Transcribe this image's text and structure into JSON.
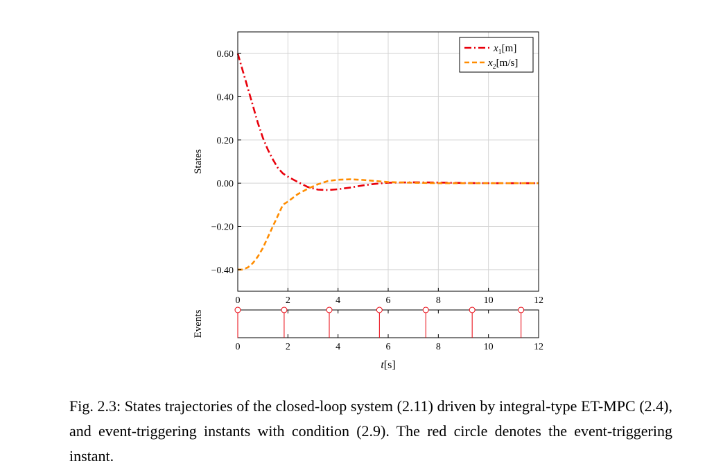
{
  "caption": "Fig. 2.3: States trajectories of the closed-loop system (2.11) driven by integral-type ET-MPC (2.4), and event-triggering instants with condition (2.9). The red circle denotes the event-triggering instant.",
  "chart_data": [
    {
      "type": "line",
      "ylabel": "States",
      "xlim": [
        0,
        12
      ],
      "ylim": [
        -0.5,
        0.7
      ],
      "xticks": [
        0,
        2,
        4,
        6,
        8,
        10,
        12
      ],
      "xtick_labels": [
        "0",
        "2",
        "4",
        "6",
        "8",
        "10",
        "12"
      ],
      "yticks": [
        -0.4,
        -0.2,
        0.0,
        0.2,
        0.4,
        0.6
      ],
      "ytick_labels": [
        "−0.40",
        "−0.20",
        "0.00",
        "0.20",
        "0.40",
        "0.60"
      ],
      "grid": true,
      "legend_position": "top-right",
      "series": [
        {
          "name": "x1[m]",
          "legend_base": "x",
          "legend_sub": "1",
          "legend_unit": "[m]",
          "color": "#e8000b",
          "style": "dash-dot",
          "x": [
            0,
            0.2,
            0.4,
            0.6,
            0.8,
            1.0,
            1.2,
            1.4,
            1.6,
            1.8,
            2.0,
            2.4,
            2.8,
            3.2,
            3.6,
            4.0,
            4.5,
            5.0,
            5.5,
            6.0,
            7.0,
            8.0,
            9.0,
            10.0,
            11.0,
            12.0
          ],
          "y": [
            0.6,
            0.52,
            0.44,
            0.36,
            0.28,
            0.21,
            0.155,
            0.11,
            0.07,
            0.045,
            0.03,
            0.005,
            -0.018,
            -0.03,
            -0.032,
            -0.028,
            -0.02,
            -0.01,
            -0.003,
            0.002,
            0.004,
            0.003,
            0.001,
            0.0,
            0.0,
            0.0
          ]
        },
        {
          "name": "x2[m/s]",
          "legend_base": "x",
          "legend_sub": "2",
          "legend_unit": "[m/s]",
          "color": "#ff8c00",
          "style": "dashed",
          "x": [
            0,
            0.2,
            0.4,
            0.6,
            0.8,
            1.0,
            1.2,
            1.4,
            1.6,
            1.8,
            2.0,
            2.4,
            2.8,
            3.2,
            3.6,
            4.0,
            4.5,
            5.0,
            5.5,
            6.0,
            7.0,
            8.0,
            9.0,
            10.0,
            11.0,
            12.0
          ],
          "y": [
            -0.4,
            -0.4,
            -0.39,
            -0.37,
            -0.34,
            -0.3,
            -0.25,
            -0.2,
            -0.15,
            -0.1,
            -0.085,
            -0.05,
            -0.025,
            -0.005,
            0.01,
            0.016,
            0.018,
            0.015,
            0.01,
            0.005,
            0.002,
            0.0,
            0.0,
            0.0,
            0.0,
            0.0
          ]
        }
      ]
    },
    {
      "type": "stem",
      "ylabel": "Events",
      "xlabel_base": "t",
      "xlabel_unit": "[s]",
      "xlim": [
        0,
        12
      ],
      "xticks": [
        0,
        2,
        4,
        6,
        8,
        10,
        12
      ],
      "xtick_labels": [
        "0",
        "2",
        "4",
        "6",
        "8",
        "10",
        "12"
      ],
      "marker": "open-circle",
      "color": "#e8000b",
      "event_times": [
        0,
        1.85,
        3.65,
        5.65,
        7.5,
        9.35,
        11.3
      ]
    }
  ]
}
